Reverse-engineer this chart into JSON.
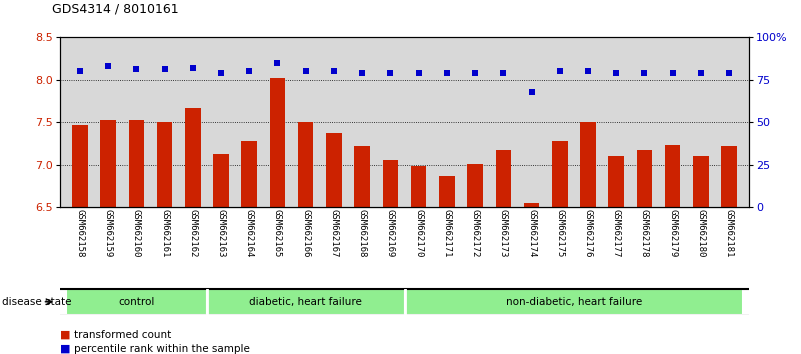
{
  "title": "GDS4314 / 8010161",
  "samples": [
    "GSM662158",
    "GSM662159",
    "GSM662160",
    "GSM662161",
    "GSM662162",
    "GSM662163",
    "GSM662164",
    "GSM662165",
    "GSM662166",
    "GSM662167",
    "GSM662168",
    "GSM662169",
    "GSM662170",
    "GSM662171",
    "GSM662172",
    "GSM662173",
    "GSM662174",
    "GSM662175",
    "GSM662176",
    "GSM662177",
    "GSM662178",
    "GSM662179",
    "GSM662180",
    "GSM662181"
  ],
  "bar_values": [
    7.47,
    7.53,
    7.52,
    7.5,
    7.67,
    7.12,
    7.28,
    8.02,
    7.5,
    7.37,
    7.22,
    7.05,
    6.98,
    6.87,
    7.01,
    7.17,
    6.55,
    7.28,
    7.5,
    7.1,
    7.17,
    7.23,
    7.1,
    7.22
  ],
  "percentile_values": [
    80,
    83,
    81,
    81,
    82,
    79,
    80,
    85,
    80,
    80,
    79,
    79,
    79,
    79,
    79,
    79,
    68,
    80,
    80,
    79,
    79,
    79,
    79,
    79
  ],
  "bar_color": "#cc2200",
  "dot_color": "#0000cc",
  "ylim_left": [
    6.5,
    8.5
  ],
  "ylim_right": [
    0,
    100
  ],
  "yticks_left": [
    6.5,
    7.0,
    7.5,
    8.0,
    8.5
  ],
  "yticks_right": [
    0,
    25,
    50,
    75,
    100
  ],
  "ytick_labels_right": [
    "0",
    "25",
    "50",
    "75",
    "100%"
  ],
  "group_labels": [
    "control",
    "diabetic, heart failure",
    "non-diabetic, heart failure"
  ],
  "group_starts": [
    0,
    5,
    12
  ],
  "group_ends": [
    5,
    12,
    24
  ],
  "group_dividers": [
    5,
    12
  ],
  "legend_bar_label": "transformed count",
  "legend_dot_label": "percentile rank within the sample",
  "disease_state_label": "disease state",
  "background_color": "#ffffff",
  "plot_bg_color": "#d8d8d8",
  "group_bg_color": "#90ee90",
  "title_fontsize": 9,
  "tick_fontsize": 6.5,
  "label_fontsize": 7.5
}
